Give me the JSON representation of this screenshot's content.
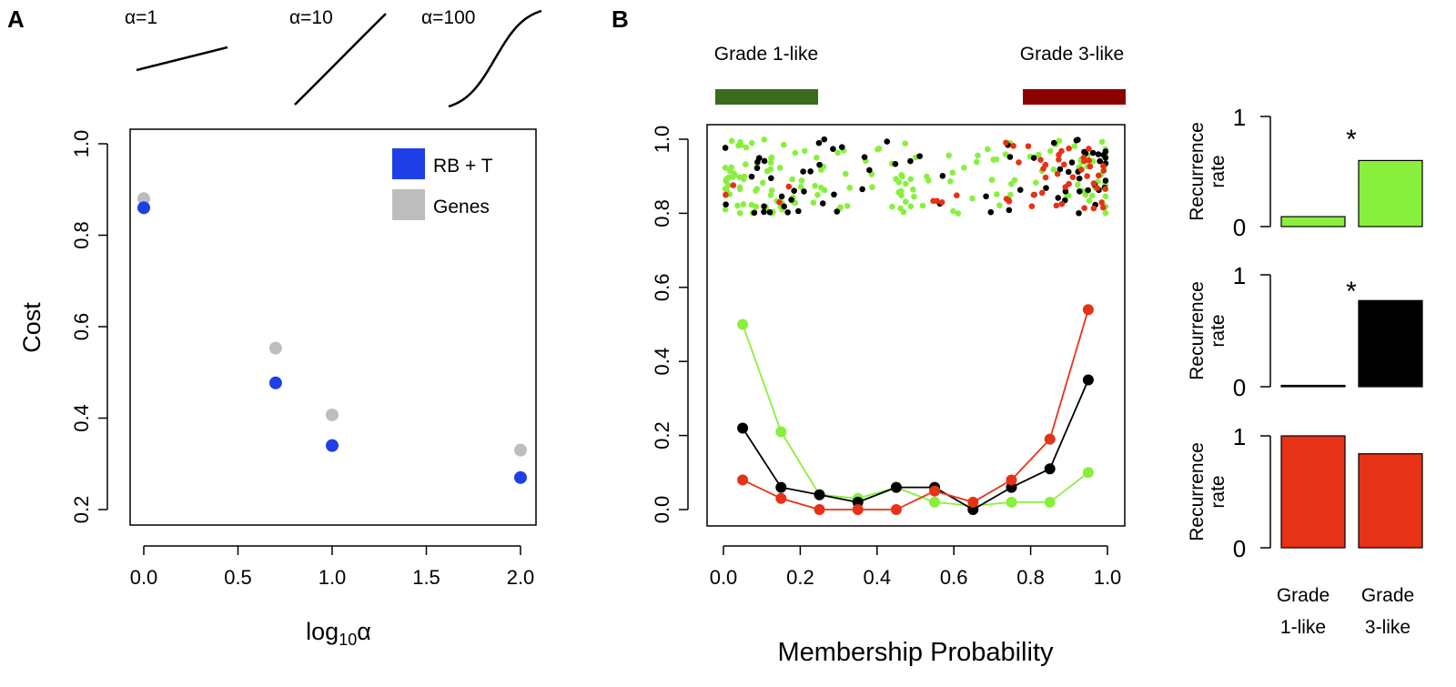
{
  "panel_a": {
    "label": "A",
    "sigmoid_labels": [
      "α=1",
      "α=10",
      "α=100"
    ],
    "sigmoid_alphas": [
      1,
      10,
      100
    ]
  },
  "panel_b": {
    "label": "B",
    "grade1_label": "Grade 1-like",
    "grade3_label": "Grade 3-like",
    "grade1_range": [
      0,
      0.25
    ],
    "grade3_range": [
      0.75,
      1.0
    ]
  },
  "colors": {
    "blue": "#1f3fe6",
    "gray": "#bdbdbd",
    "green": "#006400",
    "dark_green": "#3a6b1e",
    "dark_red": "#8b0000",
    "light_green": "#88f03c",
    "red": "#e63217",
    "black": "#000000"
  },
  "chart_data": [
    {
      "type": "scatter",
      "title": "",
      "xlabel_main": "log",
      "xlabel_sub": "10",
      "xlabel_tail": "α",
      "ylabel": "Cost",
      "xlim": [
        0,
        2
      ],
      "ylim": [
        0.2,
        1.0
      ],
      "xticks": [
        "0.0",
        "0.5",
        "1.0",
        "1.5",
        "2.0"
      ],
      "yticks": [
        "0.2",
        "0.4",
        "0.6",
        "0.8",
        "1.0"
      ],
      "legend": [
        "RB + T",
        "Genes"
      ],
      "series": [
        {
          "name": "RB + T",
          "x": [
            0,
            0.7,
            1.0,
            2.0
          ],
          "y": [
            0.86,
            0.477,
            0.34,
            0.27
          ]
        },
        {
          "name": "Genes",
          "x": [
            0,
            0.7,
            1.0,
            2.0
          ],
          "y": [
            0.88,
            0.553,
            0.407,
            0.33
          ]
        }
      ]
    },
    {
      "type": "line",
      "xlabel": "Membership Probability",
      "ylabel": "",
      "xlim": [
        0,
        1
      ],
      "ylim": [
        0,
        1
      ],
      "xticks": [
        "0.0",
        "0.2",
        "0.4",
        "0.6",
        "0.8",
        "1.0"
      ],
      "yticks": [
        "0.0",
        "0.2",
        "0.4",
        "0.6",
        "0.8",
        "1.0"
      ],
      "x": [
        0.05,
        0.15,
        0.25,
        0.35,
        0.45,
        0.55,
        0.65,
        0.75,
        0.85,
        0.95
      ],
      "series": [
        {
          "name": "green",
          "values": [
            0.5,
            0.21,
            0.04,
            0.03,
            0.06,
            0.02,
            0.01,
            0.02,
            0.02,
            0.1
          ]
        },
        {
          "name": "black",
          "values": [
            0.22,
            0.06,
            0.04,
            0.02,
            0.06,
            0.06,
            0.0,
            0.06,
            0.11,
            0.35
          ]
        },
        {
          "name": "red",
          "values": [
            0.08,
            0.03,
            0.0,
            0.0,
            0.0,
            0.05,
            0.02,
            0.08,
            0.19,
            0.54
          ]
        }
      ]
    },
    {
      "type": "bar",
      "ylabel": "Recurrence rate",
      "ylabel_lines": [
        "Recurrence",
        "rate"
      ],
      "categories": [
        "Grade 1-like",
        "Grade 3-like"
      ],
      "category_lines": [
        [
          "Grade",
          "1-like"
        ],
        [
          "Grade",
          "3-like"
        ]
      ],
      "yticks": [
        "0",
        "1"
      ],
      "ylim": [
        0,
        1
      ],
      "panels": [
        {
          "series": "green",
          "values": [
            0.09,
            0.6
          ],
          "annotation": "*"
        },
        {
          "series": "black",
          "values": [
            0.0,
            0.77
          ],
          "annotation": "*"
        },
        {
          "series": "red",
          "values": [
            1.0,
            0.84
          ],
          "annotation": ""
        }
      ]
    }
  ]
}
